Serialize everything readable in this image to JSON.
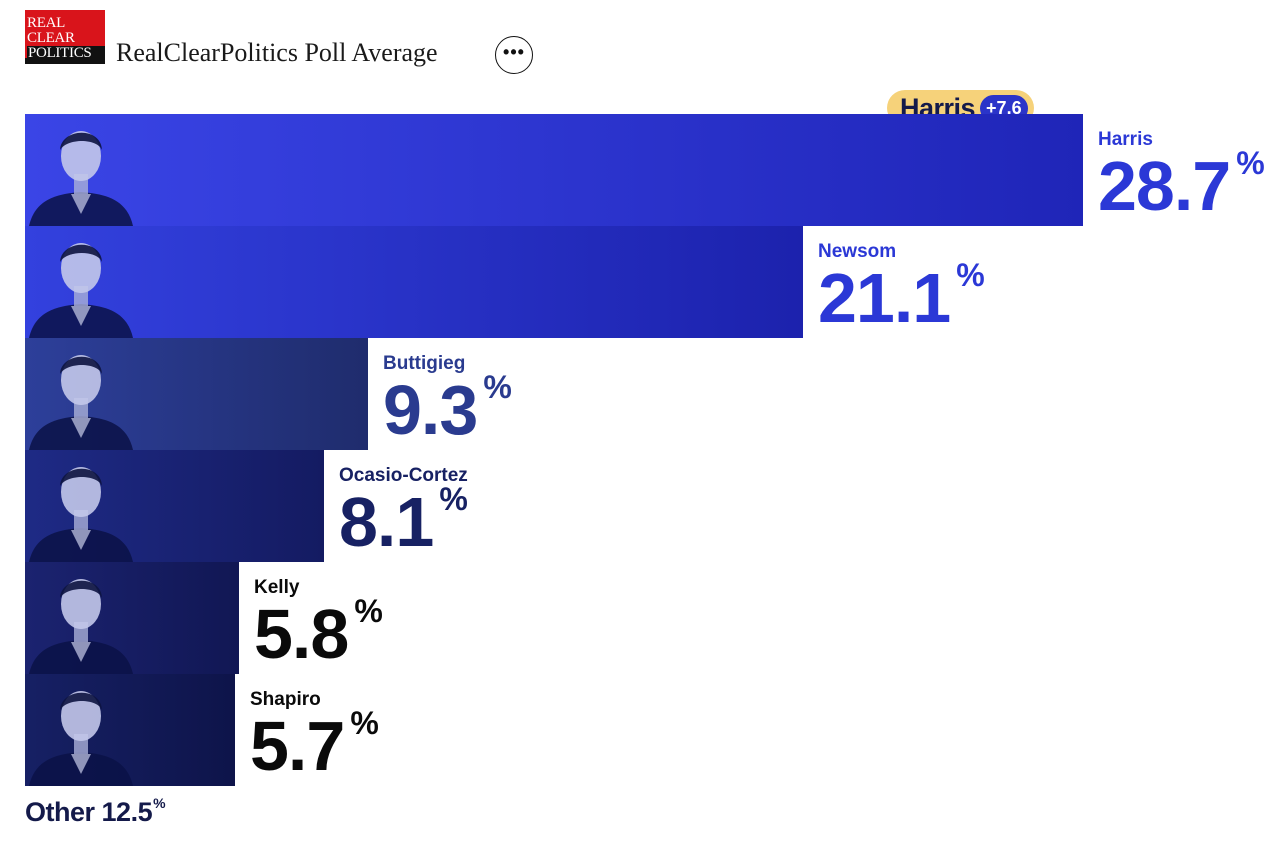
{
  "header": {
    "logo_lines": [
      "REAL",
      "CLEAR",
      "POLITICS"
    ],
    "title": "RealClearPolitics Poll Average",
    "more_label": "•••"
  },
  "leader": {
    "name": "Harris",
    "margin": "+7.6"
  },
  "chart_data": {
    "type": "bar",
    "orientation": "horizontal",
    "title": "RealClearPolitics Poll Average",
    "categories": [
      "Harris",
      "Newsom",
      "Buttigieg",
      "Ocasio-Cortez",
      "Kelly",
      "Shapiro"
    ],
    "values": [
      28.7,
      21.1,
      9.3,
      8.1,
      5.8,
      5.7
    ],
    "value_labels": [
      "28.7",
      "21.1",
      "9.3",
      "8.1",
      "5.8",
      "5.7"
    ],
    "unit": "%",
    "other": {
      "label": "Other",
      "value": 12.5,
      "value_label": "12.5"
    },
    "bar_colors": [
      [
        "#3a45e6",
        "#1f25b8"
      ],
      [
        "#3341de",
        "#1c22ad"
      ],
      [
        "#2d3f9a",
        "#1f2c6d"
      ],
      [
        "#1e2a85",
        "#141b62"
      ],
      [
        "#1b2370",
        "#111754"
      ],
      [
        "#162064",
        "#0e144a"
      ]
    ],
    "label_colors": [
      "#2b38d6",
      "#2b38d6",
      "#2a3b8f",
      "#172163",
      "#0a0a0a",
      "#0a0a0a"
    ]
  }
}
